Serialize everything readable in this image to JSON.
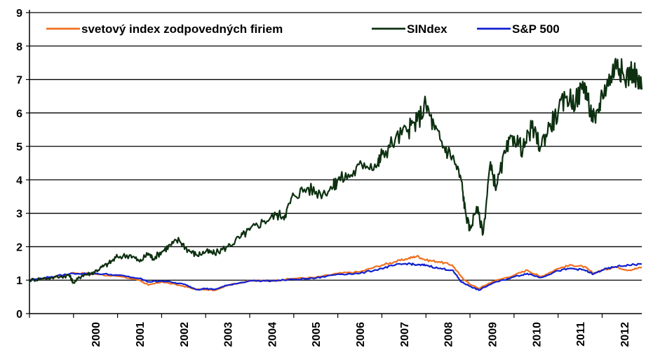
{
  "chart_data": {
    "type": "line",
    "title": "",
    "xlabel": "",
    "ylabel": "",
    "ylim": [
      0,
      9
    ],
    "yticks": [
      0,
      1,
      2,
      3,
      4,
      5,
      6,
      7,
      8,
      9
    ],
    "xlim": [
      1999,
      2012.9
    ],
    "xticks": [
      "2000",
      "2001",
      "2002",
      "2003",
      "2004",
      "2005",
      "2006",
      "2007",
      "2008",
      "2009",
      "2010",
      "2011",
      "2012"
    ],
    "grid": "horizontal",
    "legend": "top",
    "series": [
      {
        "name": "svetový index zodpovedných firiem",
        "color": "#f07020",
        "x": [
          1999.0,
          1999.5,
          2000.0,
          2000.5,
          2001.0,
          2001.5,
          2001.7,
          2002.0,
          2002.5,
          2002.8,
          2003.0,
          2003.2,
          2003.5,
          2004.0,
          2004.5,
          2005.0,
          2005.5,
          2006.0,
          2006.5,
          2007.0,
          2007.3,
          2007.6,
          2007.8,
          2008.0,
          2008.3,
          2008.6,
          2008.8,
          2009.0,
          2009.2,
          2009.5,
          2010.0,
          2010.3,
          2010.6,
          2011.0,
          2011.3,
          2011.6,
          2011.8,
          2012.0,
          2012.3,
          2012.6,
          2012.9
        ],
        "values": [
          1.0,
          1.08,
          1.22,
          1.18,
          1.12,
          1.0,
          0.85,
          0.95,
          0.82,
          0.72,
          0.72,
          0.7,
          0.85,
          0.98,
          0.98,
          1.05,
          1.08,
          1.2,
          1.25,
          1.45,
          1.55,
          1.65,
          1.72,
          1.6,
          1.55,
          1.45,
          1.1,
          0.88,
          0.75,
          0.95,
          1.15,
          1.3,
          1.1,
          1.35,
          1.45,
          1.4,
          1.2,
          1.3,
          1.4,
          1.3,
          1.38
        ]
      },
      {
        "name": "SINdex",
        "color": "#0d3010",
        "x": [
          1999.0,
          1999.3,
          1999.7,
          1999.9,
          2000.0,
          2000.2,
          2000.4,
          2000.6,
          2000.8,
          2001.0,
          2001.3,
          2001.5,
          2001.7,
          2001.8,
          2002.0,
          2002.2,
          2002.4,
          2002.6,
          2002.8,
          2003.0,
          2003.2,
          2003.5,
          2003.8,
          2004.0,
          2004.3,
          2004.6,
          2004.8,
          2005.0,
          2005.3,
          2005.6,
          2005.9,
          2006.0,
          2006.3,
          2006.6,
          2006.9,
          2007.0,
          2007.3,
          2007.6,
          2007.8,
          2008.0,
          2008.2,
          2008.4,
          2008.6,
          2008.8,
          2008.9,
          2009.0,
          2009.15,
          2009.3,
          2009.45,
          2009.6,
          2009.8,
          2010.0,
          2010.2,
          2010.4,
          2010.6,
          2010.8,
          2011.0,
          2011.2,
          2011.4,
          2011.6,
          2011.7,
          2011.85,
          2012.0,
          2012.2,
          2012.35,
          2012.5,
          2012.7,
          2012.9
        ],
        "values": [
          1.0,
          1.05,
          1.1,
          1.15,
          0.92,
          1.15,
          1.2,
          1.35,
          1.5,
          1.7,
          1.75,
          1.55,
          1.8,
          1.65,
          1.85,
          2.05,
          2.2,
          1.9,
          1.75,
          1.85,
          1.8,
          2.0,
          2.3,
          2.5,
          2.75,
          2.95,
          2.95,
          3.55,
          3.75,
          3.6,
          3.8,
          4.0,
          4.15,
          4.5,
          4.45,
          4.75,
          5.2,
          5.5,
          5.75,
          6.25,
          5.5,
          5.0,
          4.7,
          4.0,
          3.0,
          2.5,
          3.2,
          2.4,
          4.4,
          3.8,
          4.8,
          5.3,
          4.9,
          5.55,
          5.0,
          5.6,
          6.0,
          6.5,
          6.35,
          6.9,
          6.2,
          5.7,
          6.6,
          7.1,
          7.6,
          7.0,
          7.3,
          6.7
        ]
      },
      {
        "name": "S&P 500",
        "color": "#1020d0",
        "x": [
          1999.0,
          1999.5,
          2000.0,
          2000.5,
          2001.0,
          2001.5,
          2001.7,
          2002.0,
          2002.5,
          2002.8,
          2003.0,
          2003.2,
          2003.5,
          2004.0,
          2004.5,
          2005.0,
          2005.5,
          2006.0,
          2006.5,
          2007.0,
          2007.3,
          2007.6,
          2007.8,
          2008.0,
          2008.3,
          2008.6,
          2008.8,
          2009.0,
          2009.2,
          2009.5,
          2010.0,
          2010.3,
          2010.6,
          2011.0,
          2011.3,
          2011.6,
          2011.8,
          2012.0,
          2012.3,
          2012.6,
          2012.9
        ],
        "values": [
          1.0,
          1.1,
          1.2,
          1.2,
          1.15,
          1.05,
          0.95,
          0.98,
          0.88,
          0.72,
          0.75,
          0.72,
          0.85,
          0.98,
          0.98,
          1.02,
          1.06,
          1.18,
          1.2,
          1.35,
          1.45,
          1.5,
          1.45,
          1.45,
          1.35,
          1.3,
          0.95,
          0.82,
          0.7,
          0.9,
          1.1,
          1.2,
          1.08,
          1.28,
          1.35,
          1.3,
          1.18,
          1.3,
          1.4,
          1.45,
          1.48
        ]
      }
    ]
  }
}
